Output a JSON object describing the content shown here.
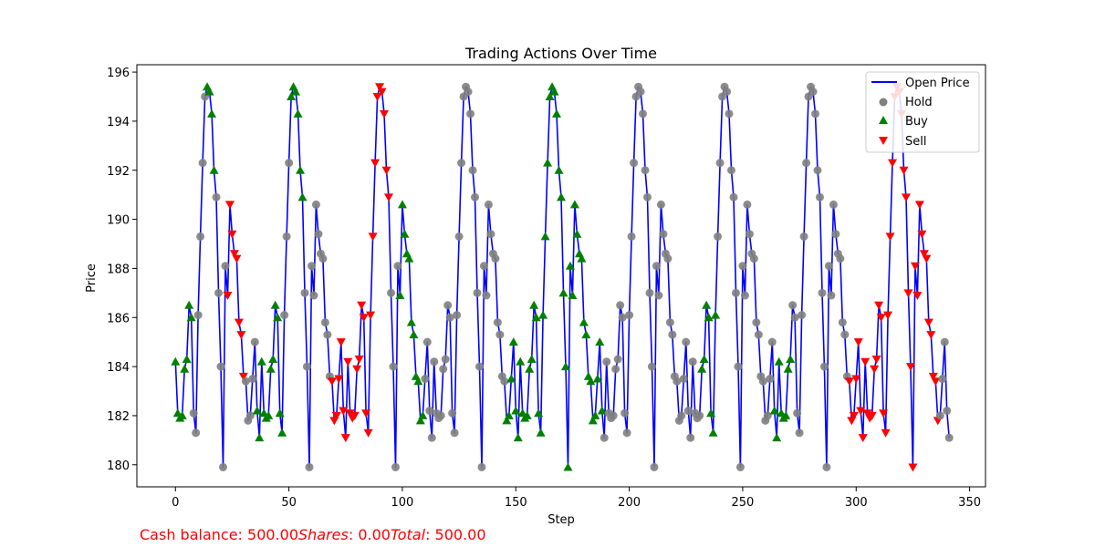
{
  "chart_data": {
    "type": "line",
    "title": "Trading Actions Over Time",
    "xlabel": "Step",
    "ylabel": "Price",
    "xlim": [
      -17,
      357
    ],
    "ylim": [
      179.1,
      196.3
    ],
    "xticks": [
      0,
      50,
      100,
      150,
      200,
      250,
      300,
      350
    ],
    "yticks": [
      180,
      182,
      184,
      186,
      188,
      190,
      192,
      194,
      196
    ],
    "legend_position": "top-right",
    "grid": false,
    "colors": {
      "line": "#0000ff",
      "hold": "#808080",
      "buy": "#008000",
      "sell": "#ff0000"
    },
    "legend": [
      "Open Price",
      "Hold",
      "Buy",
      "Sell"
    ],
    "x": [
      0,
      1,
      2,
      3,
      4,
      5,
      6,
      7,
      8,
      9,
      10,
      11,
      12,
      13,
      14,
      15,
      16,
      17,
      18,
      19,
      20,
      21,
      22,
      23,
      24,
      25,
      26,
      27,
      28,
      29,
      30,
      31,
      32,
      33,
      34,
      35,
      36,
      37,
      38,
      39,
      40,
      41,
      42,
      43,
      44,
      45,
      46,
      47,
      48,
      49,
      50,
      51,
      52,
      53,
      54,
      55,
      56,
      57,
      58,
      59,
      60,
      61,
      62,
      63,
      64,
      65,
      66,
      67,
      68,
      69,
      70,
      71,
      72,
      73,
      74,
      75,
      76,
      77,
      78,
      79,
      80,
      81,
      82,
      83,
      84,
      85,
      86,
      87,
      88,
      89,
      90,
      91,
      92,
      93,
      94,
      95,
      96,
      97,
      98,
      99,
      100,
      101,
      102,
      103,
      104,
      105,
      106,
      107,
      108,
      109,
      110,
      111,
      112,
      113,
      114,
      115,
      116,
      117,
      118,
      119,
      120,
      121,
      122,
      123,
      124,
      125,
      126,
      127,
      128,
      129,
      130,
      131,
      132,
      133,
      134,
      135,
      136,
      137,
      138,
      139,
      140,
      141,
      142,
      143,
      144,
      145,
      146,
      147,
      148,
      149,
      150,
      151,
      152,
      153,
      154,
      155,
      156,
      157,
      158,
      159,
      160,
      161,
      162,
      163,
      164,
      165,
      166,
      167,
      168,
      169,
      170,
      171,
      172,
      173,
      174,
      175,
      176,
      177,
      178,
      179,
      180,
      181,
      182,
      183,
      184,
      185,
      186,
      187,
      188,
      189,
      190,
      191,
      192,
      193,
      194,
      195,
      196,
      197,
      198,
      199,
      200,
      201,
      202,
      203,
      204,
      205,
      206,
      207,
      208,
      209,
      210,
      211,
      212,
      213,
      214,
      215,
      216,
      217,
      218,
      219,
      220,
      221,
      222,
      223,
      224,
      225,
      226,
      227,
      228,
      229,
      230,
      231,
      232,
      233,
      234,
      235,
      236,
      237,
      238,
      239,
      240,
      241,
      242,
      243,
      244,
      245,
      246,
      247,
      248,
      249,
      250,
      251,
      252,
      253,
      254,
      255,
      256,
      257,
      258,
      259,
      260,
      261,
      262,
      263,
      264,
      265,
      266,
      267,
      268,
      269,
      270,
      271,
      272,
      273,
      274,
      275,
      276,
      277,
      278,
      279,
      280,
      281,
      282,
      283,
      284,
      285,
      286,
      287,
      288,
      289,
      290,
      291,
      292,
      293,
      294,
      295,
      296,
      297,
      298,
      299,
      300,
      301,
      302,
      303,
      304,
      305,
      306,
      307,
      308,
      309,
      310,
      311,
      312,
      313,
      314,
      315,
      316,
      317,
      318,
      319,
      320,
      321,
      322,
      323,
      324,
      325,
      326,
      327,
      328,
      329,
      330,
      331,
      332,
      333,
      334,
      335,
      336,
      337,
      338,
      339,
      340,
      341
    ],
    "open_price": [
      184.2,
      182.1,
      181.9,
      182.0,
      183.9,
      184.3,
      186.5,
      186.0,
      182.1,
      181.3,
      186.1,
      189.3,
      192.3,
      195.0,
      195.4,
      195.2,
      194.3,
      192.0,
      190.9,
      187.0,
      184.0,
      179.9,
      188.1,
      186.9,
      190.6,
      189.4,
      188.6,
      188.4,
      185.8,
      185.3,
      183.6,
      183.4,
      181.8,
      182.0,
      183.5,
      185.0,
      182.2,
      181.1,
      184.2,
      182.1,
      181.9,
      182.0,
      183.9,
      184.3,
      186.5,
      186.0,
      182.1,
      181.3,
      186.1,
      189.3,
      192.3,
      195.0,
      195.4,
      195.2,
      194.3,
      192.0,
      190.9,
      187.0,
      184.0,
      179.9,
      188.1,
      186.9,
      190.6,
      189.4,
      188.6,
      188.4,
      185.8,
      185.3,
      183.6,
      183.4,
      181.8,
      182.0,
      183.5,
      185.0,
      182.2,
      181.1,
      184.2,
      182.1,
      181.9,
      182.0,
      183.9,
      184.3,
      186.5,
      186.0,
      182.1,
      181.3,
      186.1,
      189.3,
      192.3,
      195.0,
      195.4,
      195.2,
      194.3,
      192.0,
      190.9,
      187.0,
      184.0,
      179.9,
      188.1,
      186.9,
      190.6,
      189.4,
      188.6,
      188.4,
      185.8,
      185.3,
      183.6,
      183.4,
      181.8,
      182.0,
      183.5,
      185.0,
      182.2,
      181.1,
      184.2,
      182.1,
      181.9,
      182.0,
      183.9,
      184.3,
      186.5,
      186.0,
      182.1,
      181.3,
      186.1,
      189.3,
      192.3,
      195.0,
      195.4,
      195.2,
      194.3,
      192.0,
      190.9,
      187.0,
      184.0,
      179.9,
      188.1,
      186.9,
      190.6,
      189.4,
      188.6,
      188.4,
      185.8,
      185.3,
      183.6,
      183.4,
      181.8,
      182.0,
      183.5,
      185.0,
      182.2,
      181.1,
      184.2,
      182.1,
      181.9,
      182.0,
      183.9,
      184.3,
      186.5,
      186.0,
      182.1,
      181.3,
      186.1,
      189.3,
      192.3,
      195.0,
      195.4,
      195.2,
      194.3,
      192.0,
      190.9,
      187.0,
      184.0,
      179.9,
      188.1,
      186.9,
      190.6,
      189.4,
      188.6,
      188.4,
      185.8,
      185.3,
      183.6,
      183.4,
      181.8,
      182.0,
      183.5,
      185.0,
      182.2,
      181.1,
      184.2,
      182.1,
      181.9,
      182.0,
      183.9,
      184.3,
      186.5,
      186.0,
      182.1,
      181.3,
      186.1,
      189.3,
      192.3,
      195.0,
      195.4,
      195.2,
      194.3,
      192.0,
      190.9,
      187.0,
      184.0,
      179.9,
      188.1,
      186.9,
      190.6,
      189.4,
      188.6,
      188.4,
      185.8,
      185.3,
      183.6,
      183.4,
      181.8,
      182.0,
      183.5,
      185.0,
      182.2,
      181.1,
      184.2,
      182.1,
      181.9,
      182.0,
      183.9,
      184.3,
      186.5,
      186.0,
      182.1,
      181.3,
      186.1,
      189.3,
      192.3,
      195.0,
      195.4,
      195.2,
      194.3,
      192.0,
      190.9,
      187.0,
      184.0,
      179.9,
      188.1,
      186.9,
      190.6,
      189.4,
      188.6,
      188.4,
      185.8,
      185.3,
      183.6,
      183.4,
      181.8,
      182.0,
      183.5,
      185.0,
      182.2,
      181.1,
      184.2,
      182.1,
      181.9,
      182.0,
      183.9,
      184.3,
      186.5,
      186.0,
      182.1,
      181.3,
      186.1,
      189.3,
      192.3,
      195.0,
      195.4,
      195.2,
      194.3,
      192.0,
      190.9,
      187.0,
      184.0,
      179.9,
      188.1,
      186.9,
      190.6,
      189.4,
      188.6,
      188.4,
      185.8,
      185.3,
      183.6,
      183.4,
      181.8,
      182.0,
      183.5,
      185.0,
      182.2,
      181.1,
      184.2,
      182.1,
      181.9,
      182.0,
      183.9,
      184.3,
      186.5,
      186.0,
      182.1,
      181.3,
      186.1,
      189.3,
      192.3,
      195.0,
      195.4,
      195.2,
      194.3,
      192.0,
      190.9,
      187.0,
      184.0,
      179.9,
      188.1,
      186.9,
      190.6,
      189.4,
      188.6,
      188.4,
      185.8,
      185.3,
      183.6,
      183.4,
      181.8,
      182.0,
      183.5,
      185.0,
      182.2,
      181.1
    ],
    "actions": "BBBBBBBBHHHHHHBBBBHHHHHSSSSSSSSHHHHHBBBBBBBBBBBBHHHBBBBBBHHHHHHHHHHHHSSSSSSSSSSSSSSSSSSSSSSSSSSHHHHBBBBBBBBBBBHHHHHHHHHHHHHHHHHHHHHHHHHHHHHHHHHHHHBBBBBBBBBBBBBBBBBBBBBBBBBBBBBBBBBBBBBBBBBBBHHHHHHHHHHHHHHHHHHHHHHHHHHHHHHHHHHHHHHHHHHHBBBBBBBHHHHHHHHHHHHHHHHHHHHHHHHHBBBBBBBBHHHHHHHHHHHHHHHHHHHHHHHHHSSSSSSSSSSSSSSSSSSSSSSSSSSSSSSSSSSSSSSSSHHHHHHHHHHHHH"
  },
  "footer": {
    "cash_label": "Cash balance: 500.00",
    "shares_label": "Shares",
    "shares_value": ": 0.00",
    "total_label": "Total",
    "total_value": ": 500.00"
  }
}
